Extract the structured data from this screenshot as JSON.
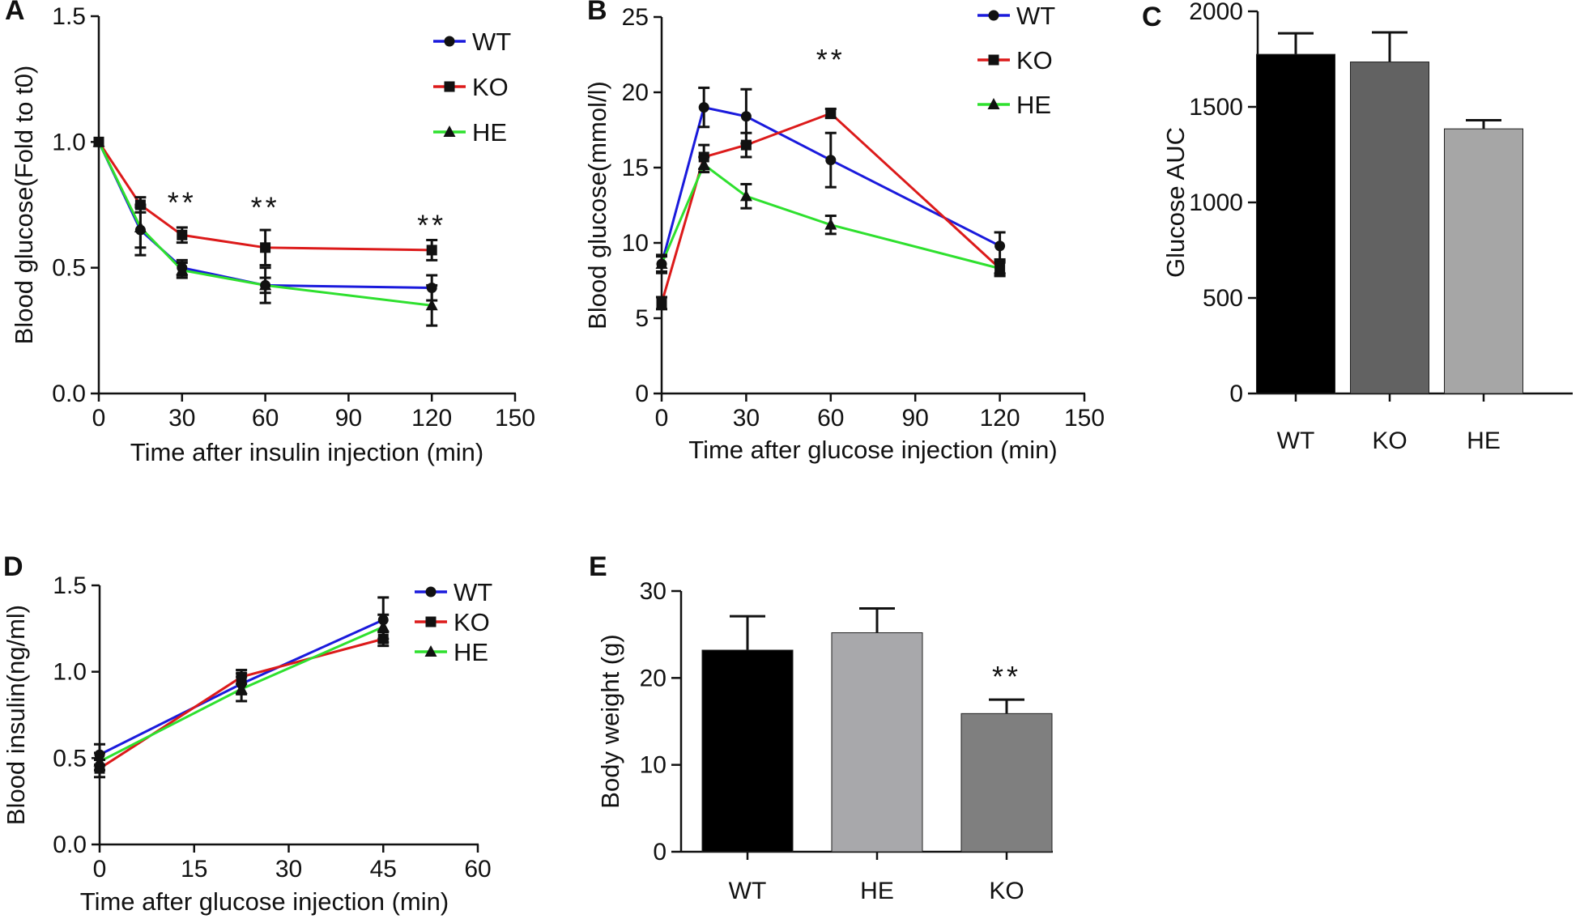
{
  "figure": {
    "panel_letters": [
      "A",
      "B",
      "C",
      "D",
      "E"
    ]
  },
  "chart_data": [
    {
      "panel": "A",
      "type": "line",
      "title": "",
      "xlabel": "Time after insulin injection (min)",
      "ylabel": "Blood glucose(Fold to t0)",
      "xlim": [
        0,
        150
      ],
      "ylim": [
        0,
        1.5
      ],
      "x_ticks": [
        "0",
        "30",
        "60",
        "90",
        "120",
        "150"
      ],
      "y_ticks": [
        "0.0",
        "0.5",
        "1.0",
        "1.5"
      ],
      "x": [
        0,
        15,
        30,
        60,
        120
      ],
      "series": [
        {
          "name": "WT",
          "color": "#1a1adc",
          "marker": "circle",
          "values": [
            1.0,
            0.65,
            0.5,
            0.43,
            0.42
          ],
          "errors": [
            0,
            0.1,
            0.03,
            0.03,
            0.05
          ]
        },
        {
          "name": "KO",
          "color": "#dc1a1a",
          "marker": "square",
          "values": [
            1.0,
            0.75,
            0.63,
            0.58,
            0.57
          ],
          "errors": [
            0,
            0.03,
            0.03,
            0.07,
            0.04
          ]
        },
        {
          "name": "HE",
          "color": "#2ee02e",
          "marker": "triangle",
          "values": [
            1.0,
            0.66,
            0.49,
            0.43,
            0.35
          ],
          "errors": [
            0,
            0.08,
            0.03,
            0.07,
            0.08
          ]
        }
      ],
      "annotations": [
        {
          "x": 30,
          "y": 0.72,
          "text": "**"
        },
        {
          "x": 60,
          "y": 0.7,
          "text": "**"
        },
        {
          "x": 120,
          "y": 0.63,
          "text": "**"
        }
      ]
    },
    {
      "panel": "B",
      "type": "line",
      "title": "",
      "xlabel": "Time after glucose injection (min)",
      "ylabel": "Blood glucose(mmol/l)",
      "xlim": [
        0,
        150
      ],
      "ylim": [
        0,
        25
      ],
      "x_ticks": [
        "0",
        "30",
        "60",
        "90",
        "120",
        "150"
      ],
      "y_ticks": [
        "0",
        "5",
        "10",
        "15",
        "20",
        "25"
      ],
      "x": [
        0,
        15,
        30,
        60,
        120
      ],
      "series": [
        {
          "name": "WT",
          "color": "#1a1adc",
          "marker": "circle",
          "values": [
            8.6,
            19.0,
            18.4,
            15.5,
            9.8
          ],
          "errors": [
            0.6,
            1.3,
            1.8,
            1.8,
            0.9
          ]
        },
        {
          "name": "KO",
          "color": "#dc1a1a",
          "marker": "square",
          "values": [
            6.0,
            15.7,
            16.5,
            18.6,
            8.3
          ],
          "errors": [
            0.4,
            0.8,
            0.8,
            0.3,
            0.5
          ]
        },
        {
          "name": "HE",
          "color": "#2ee02e",
          "marker": "triangle",
          "values": [
            8.6,
            15.2,
            13.1,
            11.2,
            8.3
          ],
          "errors": [
            0.5,
            0.5,
            0.8,
            0.6,
            0.4
          ]
        }
      ],
      "annotations": [
        {
          "x": 60,
          "y": 21.5,
          "text": "**"
        }
      ]
    },
    {
      "panel": "C",
      "type": "bar",
      "title": "",
      "xlabel": "",
      "ylabel": "Glucose AUC",
      "ylim": [
        0,
        2000
      ],
      "y_ticks": [
        "0",
        "500",
        "1000",
        "1500",
        "2000"
      ],
      "categories": [
        "WT",
        "KO",
        "HE"
      ],
      "values": [
        1775,
        1735,
        1385
      ],
      "errors": [
        110,
        155,
        45
      ],
      "colors": [
        "#000000",
        "#626262",
        "#a6a6a6"
      ]
    },
    {
      "panel": "D",
      "type": "line",
      "title": "",
      "xlabel": "Time after glucose injection (min)",
      "ylabel": "Blood insulin(ng/ml)",
      "xlim": [
        0,
        60
      ],
      "ylim": [
        0,
        1.5
      ],
      "x_ticks": [
        "0",
        "15",
        "30",
        "45",
        "60"
      ],
      "y_ticks": [
        "0.0",
        "0.5",
        "1.0",
        "1.5"
      ],
      "x": [
        0,
        22.5,
        45
      ],
      "series": [
        {
          "name": "WT",
          "color": "#1a1adc",
          "marker": "circle",
          "values": [
            0.52,
            0.93,
            1.3
          ],
          "errors": [
            0.06,
            0.06,
            0.13
          ]
        },
        {
          "name": "KO",
          "color": "#dc1a1a",
          "marker": "square",
          "values": [
            0.44,
            0.97,
            1.19
          ],
          "errors": [
            0.05,
            0.04,
            0.04
          ]
        },
        {
          "name": "HE",
          "color": "#2ee02e",
          "marker": "triangle",
          "values": [
            0.48,
            0.9,
            1.26
          ],
          "errors": [
            0.05,
            0.07,
            0.07
          ]
        }
      ],
      "annotations": []
    },
    {
      "panel": "E",
      "type": "bar",
      "title": "",
      "xlabel": "",
      "ylabel": "Body weight (g)",
      "ylim": [
        0,
        30
      ],
      "y_ticks": [
        "0",
        "10",
        "20",
        "30"
      ],
      "categories": [
        "WT",
        "HE",
        "KO"
      ],
      "values": [
        23.2,
        25.2,
        15.9
      ],
      "errors": [
        3.9,
        2.8,
        1.6
      ],
      "colors": [
        "#000000",
        "#a8a8ab",
        "#7f7f7f"
      ],
      "annotations": [
        {
          "category": "KO",
          "text": "**"
        }
      ]
    }
  ]
}
